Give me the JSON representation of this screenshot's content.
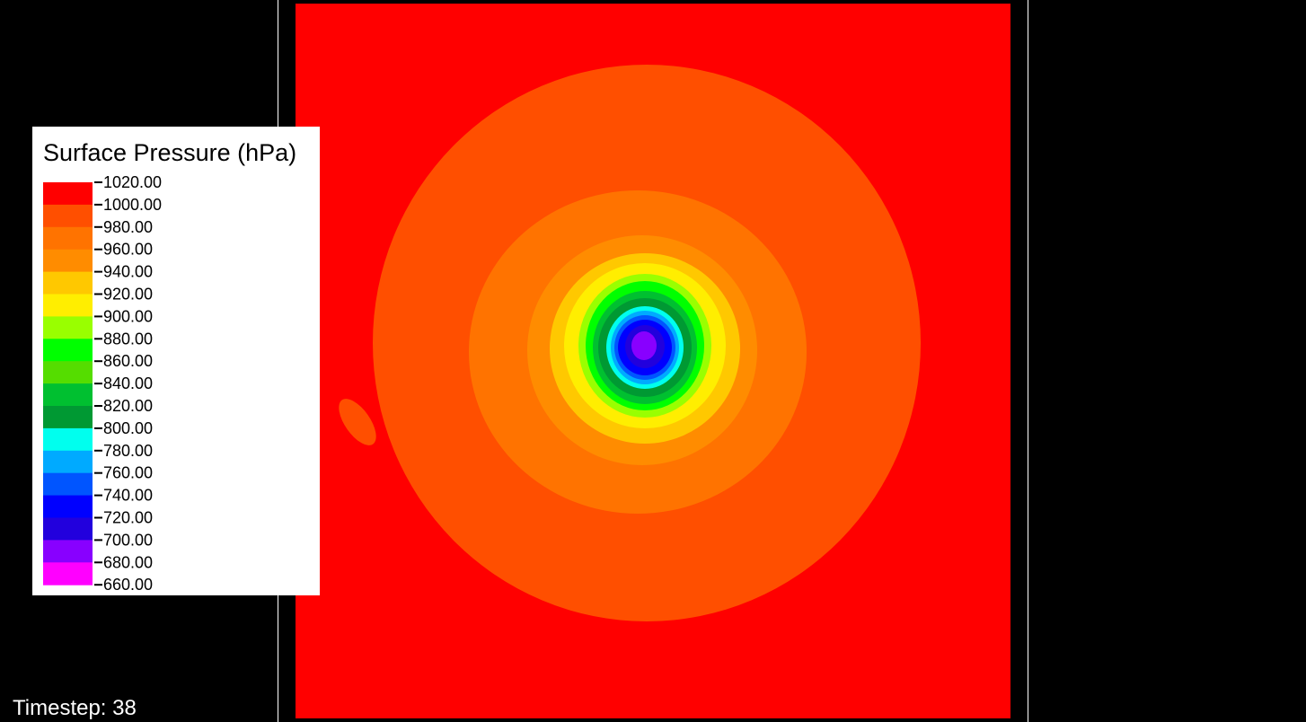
{
  "legend": {
    "title": "Surface Pressure (hPa)",
    "ticks": [
      "1020.00",
      "1000.00",
      "980.00",
      "960.00",
      "940.00",
      "920.00",
      "900.00",
      "880.00",
      "860.00",
      "840.00",
      "820.00",
      "800.00",
      "780.00",
      "760.00",
      "740.00",
      "720.00",
      "700.00",
      "680.00",
      "660.00"
    ],
    "colors": [
      "#ff0000",
      "#ff4f00",
      "#ff7300",
      "#ff8c00",
      "#ffc800",
      "#ffee00",
      "#99ff00",
      "#00ff00",
      "#55dd00",
      "#00c030",
      "#009933",
      "#00ffee",
      "#00aaff",
      "#0055ff",
      "#0000ff",
      "#2200dd",
      "#8800ff",
      "#ff00ff"
    ]
  },
  "footer": {
    "timestep": "Timestep: 38"
  }
}
